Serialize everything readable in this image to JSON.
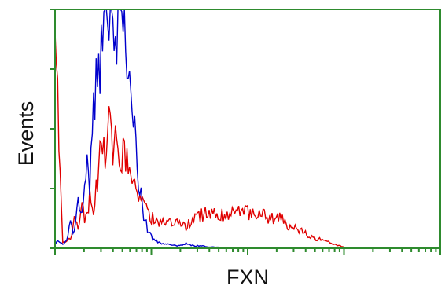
{
  "chart_data": {
    "type": "line",
    "xlabel": "FXN",
    "ylabel": "Events",
    "x_scale": "log",
    "xlim": [
      0,
      100
    ],
    "ylim": [
      0,
      100
    ],
    "grid": false,
    "legend": "none",
    "colors": {
      "axis": "#2e8b2e",
      "frame": "#2e8b2e"
    },
    "series": [
      {
        "color": "#e00000",
        "x": [
          0,
          2,
          4,
          5,
          6,
          7,
          8,
          9,
          10,
          11,
          12,
          13,
          14,
          15,
          16,
          17,
          18,
          19,
          20,
          21,
          22,
          23,
          24,
          25,
          26,
          28,
          30,
          32,
          34,
          36,
          38,
          40,
          42,
          44,
          46,
          48,
          50,
          52,
          54,
          56,
          58,
          60,
          62,
          64,
          66,
          68,
          70,
          72,
          74,
          76
        ],
        "y": [
          90,
          2,
          4,
          12,
          8,
          16,
          12,
          22,
          15,
          30,
          45,
          38,
          50,
          42,
          48,
          35,
          44,
          30,
          34,
          25,
          22,
          18,
          15,
          13,
          12,
          11,
          10,
          10,
          9,
          12,
          14,
          16,
          13,
          15,
          14,
          15,
          15,
          13,
          14,
          12,
          13,
          10,
          9,
          7,
          5,
          4,
          3,
          2,
          1,
          0
        ]
      },
      {
        "color": "#0000cc",
        "x": [
          0,
          2,
          3,
          4,
          5,
          6,
          7,
          8,
          9,
          10,
          11,
          12,
          13,
          14,
          15,
          16,
          17,
          18,
          19,
          20,
          21,
          22,
          23,
          24,
          25,
          26,
          28,
          30,
          32,
          34,
          36,
          38,
          40,
          42,
          44
        ],
        "y": [
          3,
          2,
          3,
          10,
          6,
          20,
          15,
          35,
          28,
          55,
          75,
          85,
          95,
          100,
          100,
          97,
          100,
          90,
          80,
          60,
          40,
          25,
          14,
          8,
          5,
          3,
          2,
          1.5,
          1,
          2,
          1,
          1,
          0.5,
          0.5,
          0
        ]
      }
    ]
  }
}
